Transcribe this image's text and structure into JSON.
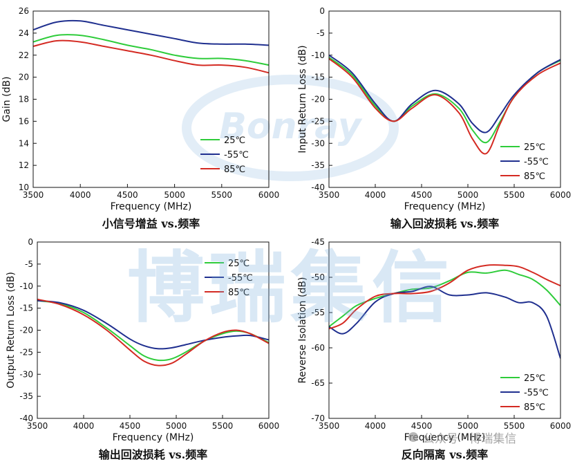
{
  "colors": {
    "c25": "#2ecc3a",
    "cm55": "#1f2f8f",
    "c85": "#d42a22",
    "watermark": "#7aaedc"
  },
  "watermark": {
    "text": "博瑞集信",
    "logo_text": "Bonray",
    "account": "公众号 · 博瑞集信"
  },
  "chart_data": [
    {
      "type": "line",
      "caption": "小信号增益 vs.频率",
      "xlabel": "Frequency (MHz)",
      "ylabel": "Gain (dB)",
      "xlim": [
        3500,
        6000
      ],
      "ylim": [
        10,
        26
      ],
      "xticks": [
        "3500",
        "4000",
        "4500",
        "5000",
        "5500",
        "6000"
      ],
      "yticks": [
        "10",
        "12",
        "14",
        "16",
        "18",
        "20",
        "22",
        "24",
        "26"
      ],
      "legend": [
        "25℃",
        "-55℃",
        "85℃"
      ],
      "legend_position": "lower-center",
      "x": [
        3500,
        3750,
        4000,
        4250,
        4500,
        4750,
        5000,
        5250,
        5500,
        5750,
        6000
      ],
      "series": [
        {
          "name": "25℃",
          "values": [
            23.2,
            23.8,
            23.8,
            23.4,
            22.9,
            22.5,
            22.0,
            21.7,
            21.7,
            21.5,
            21.1
          ]
        },
        {
          "name": "-55℃",
          "values": [
            24.3,
            25.0,
            25.1,
            24.7,
            24.3,
            23.9,
            23.5,
            23.1,
            23.0,
            23.0,
            22.9
          ]
        },
        {
          "name": "85℃",
          "values": [
            22.8,
            23.3,
            23.2,
            22.8,
            22.4,
            22.0,
            21.5,
            21.1,
            21.1,
            20.9,
            20.4
          ]
        }
      ]
    },
    {
      "type": "line",
      "caption": "输入回波损耗 vs.频率",
      "xlabel": "Frequency (MHz)",
      "ylabel": "Input Return Loss (dB)",
      "xlim": [
        3500,
        6000
      ],
      "ylim": [
        -40,
        0
      ],
      "xticks": [
        "3500",
        "4000",
        "4500",
        "5000",
        "5500",
        "6000"
      ],
      "yticks": [
        "0",
        "-5",
        "-10",
        "-15",
        "-20",
        "-25",
        "-30",
        "-35",
        "-40"
      ],
      "legend": [
        "25℃",
        "-55℃",
        "85℃"
      ],
      "legend_position": "lower-right",
      "x": [
        3500,
        3750,
        4000,
        4200,
        4400,
        4650,
        4900,
        5050,
        5200,
        5350,
        5500,
        5750,
        6000
      ],
      "series": [
        {
          "name": "25℃",
          "values": [
            -10.5,
            -14.5,
            -21.5,
            -25.0,
            -21.5,
            -18.8,
            -22.0,
            -27.0,
            -29.8,
            -25.0,
            -19.5,
            -14.0,
            -11.2
          ]
        },
        {
          "name": "-55℃",
          "values": [
            -10.0,
            -14.0,
            -21.0,
            -25.0,
            -21.0,
            -18.0,
            -21.0,
            -25.5,
            -27.5,
            -23.5,
            -19.0,
            -14.0,
            -11.0
          ]
        },
        {
          "name": "85℃",
          "values": [
            -10.8,
            -15.0,
            -22.0,
            -25.0,
            -22.0,
            -19.0,
            -23.0,
            -29.0,
            -32.3,
            -25.5,
            -19.5,
            -14.5,
            -11.8
          ]
        }
      ]
    },
    {
      "type": "line",
      "caption": "输出回波损耗 vs.频率",
      "xlabel": "Frequency (MHz)",
      "ylabel": "Output Return Loss (dB)",
      "xlim": [
        3500,
        6000
      ],
      "ylim": [
        -40,
        0
      ],
      "xticks": [
        "3500",
        "4000",
        "4500",
        "5000",
        "5500",
        "6000"
      ],
      "yticks": [
        "0",
        "-5",
        "-10",
        "-15",
        "-20",
        "-25",
        "-30",
        "-35",
        "-40"
      ],
      "legend": [
        "25℃",
        "-55℃",
        "85℃"
      ],
      "legend_position": "top-center",
      "x": [
        3500,
        3750,
        4000,
        4250,
        4500,
        4650,
        4800,
        4950,
        5100,
        5300,
        5500,
        5650,
        5800,
        6000
      ],
      "series": [
        {
          "name": "25℃",
          "values": [
            -13.3,
            -14.0,
            -16.0,
            -19.5,
            -23.5,
            -25.8,
            -26.8,
            -26.5,
            -25.0,
            -22.5,
            -20.8,
            -20.2,
            -20.8,
            -22.8
          ]
        },
        {
          "name": "-55℃",
          "values": [
            -13.3,
            -13.8,
            -15.5,
            -18.5,
            -22.0,
            -23.5,
            -24.2,
            -24.0,
            -23.3,
            -22.3,
            -21.6,
            -21.3,
            -21.2,
            -22.2
          ]
        },
        {
          "name": "85℃",
          "values": [
            -13.0,
            -14.2,
            -16.5,
            -20.0,
            -24.5,
            -27.0,
            -28.0,
            -27.5,
            -25.5,
            -22.5,
            -20.5,
            -20.0,
            -20.8,
            -23.0
          ]
        }
      ]
    },
    {
      "type": "line",
      "caption": "反向隔离 vs.频率",
      "xlabel": "Frequency (MHz)",
      "ylabel": "Reverse Isolation (dB)",
      "xlim": [
        3500,
        6000
      ],
      "ylim": [
        -70,
        -45
      ],
      "xticks": [
        "3500",
        "4000",
        "4500",
        "5000",
        "5500",
        "6000"
      ],
      "yticks": [
        "-45",
        "-50",
        "-55",
        "-60",
        "-65",
        "-70"
      ],
      "legend": [
        "25℃",
        "-55℃",
        "85℃"
      ],
      "legend_position": "lower-right",
      "x": [
        3500,
        3650,
        3800,
        4000,
        4200,
        4400,
        4600,
        4800,
        5000,
        5200,
        5400,
        5550,
        5700,
        5850,
        6000
      ],
      "series": [
        {
          "name": "25℃",
          "values": [
            -57.0,
            -55.5,
            -54.0,
            -53.0,
            -52.3,
            -51.7,
            -51.5,
            -50.5,
            -49.3,
            -49.4,
            -49.0,
            -49.6,
            -50.3,
            -51.8,
            -54.0
          ]
        },
        {
          "name": "-55℃",
          "values": [
            -57.0,
            -58.0,
            -56.5,
            -53.5,
            -52.3,
            -52.0,
            -51.3,
            -52.5,
            -52.5,
            -52.2,
            -52.8,
            -53.6,
            -53.6,
            -55.5,
            -61.5
          ]
        },
        {
          "name": "85℃",
          "values": [
            -57.3,
            -56.5,
            -54.5,
            -52.7,
            -52.3,
            -52.3,
            -52.0,
            -50.8,
            -49.0,
            -48.3,
            -48.3,
            -48.5,
            -49.3,
            -50.3,
            -51.2
          ]
        }
      ]
    }
  ]
}
